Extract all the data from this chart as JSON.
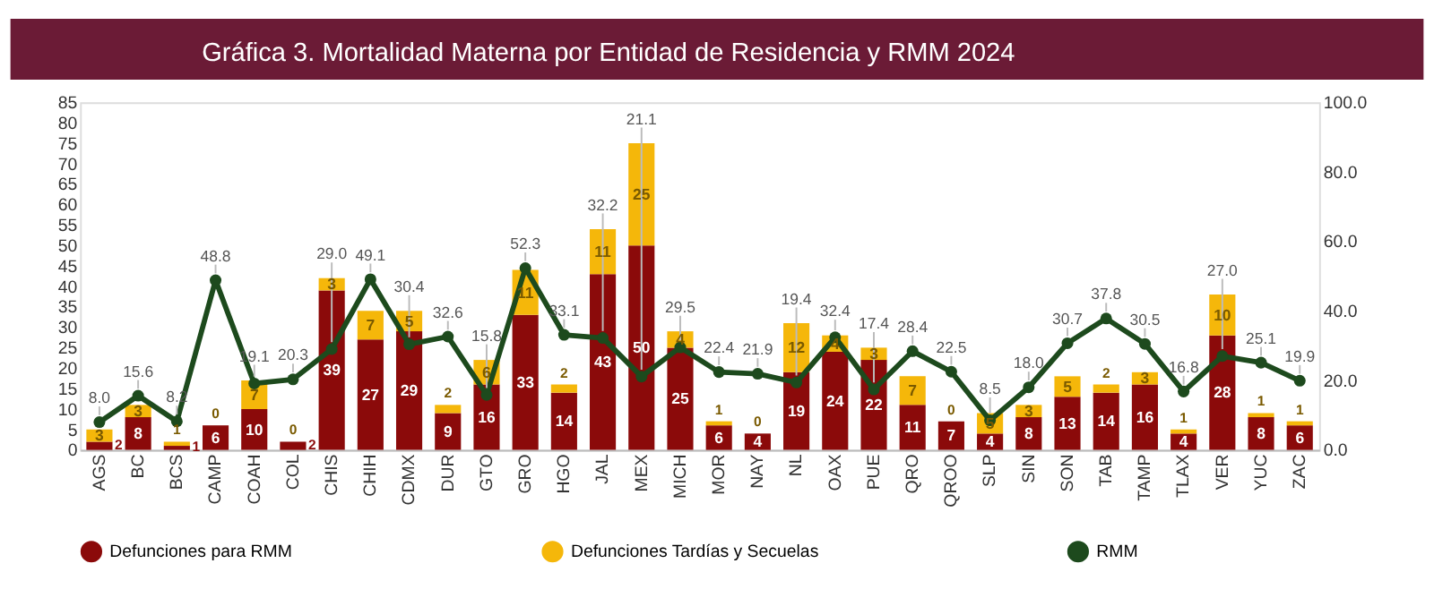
{
  "chart_data": {
    "type": "bar",
    "title": "Gráfica 3.  Mortalidad Materna por Entidad de Residencia  y RMM 2024",
    "categories": [
      "AGS",
      "BC",
      "BCS",
      "CAMP",
      "COAH",
      "COL",
      "CHIS",
      "CHIH",
      "CDMX",
      "DUR",
      "GTO",
      "GRO",
      "HGO",
      "JAL",
      "MEX",
      "MICH",
      "MOR",
      "NAY",
      "NL",
      "OAX",
      "PUE",
      "QRO",
      "QROO",
      "SLP",
      "SIN",
      "SON",
      "TAB",
      "TAMP",
      "TLAX",
      "VER",
      "YUC",
      "ZAC"
    ],
    "stacked": true,
    "series": [
      {
        "name": "Defunciones para RMM",
        "color": "#8b0a0a",
        "values": [
          2,
          8,
          1,
          6,
          10,
          2,
          39,
          27,
          29,
          9,
          16,
          33,
          14,
          43,
          50,
          25,
          6,
          4,
          19,
          24,
          22,
          11,
          7,
          4,
          8,
          13,
          14,
          16,
          4,
          28,
          8,
          6
        ]
      },
      {
        "name": "Defunciones Tardías y Secuelas",
        "color": "#f5b70a",
        "values": [
          3,
          3,
          1,
          0,
          7,
          0,
          3,
          7,
          5,
          2,
          6,
          11,
          2,
          11,
          25,
          4,
          1,
          0,
          12,
          4,
          3,
          7,
          0,
          5,
          3,
          5,
          2,
          3,
          1,
          10,
          1,
          1
        ]
      },
      {
        "name": "RMM",
        "type": "line",
        "axis": "y2",
        "color": "#1d4a1d",
        "marker": "circle",
        "values": [
          8.0,
          15.6,
          8.2,
          48.8,
          19.1,
          20.3,
          29.0,
          49.1,
          30.4,
          32.6,
          15.8,
          52.3,
          33.1,
          32.2,
          21.1,
          29.5,
          22.4,
          21.9,
          19.4,
          32.4,
          17.4,
          28.4,
          22.5,
          8.5,
          18.0,
          30.7,
          37.8,
          30.5,
          16.8,
          27.0,
          25.1,
          19.9
        ],
        "value_labels": [
          "8.0",
          "15.6",
          "8.2",
          "48.8",
          "19.1",
          "20.3",
          "29.0",
          "49.1",
          "30.4",
          "32.6",
          "15.8",
          "52.3",
          "33.1",
          "32.2",
          "21.1",
          "29.5",
          "22.4",
          "21.9",
          "19.4",
          "32.4",
          "17.4",
          "28.4",
          "22.5",
          "8.5",
          "18.0",
          "30.7",
          "37.8",
          "30.5",
          "16.8",
          "27.0",
          "25.1",
          "19.9"
        ]
      }
    ],
    "ylim": [
      0,
      85
    ],
    "yticks": [
      0,
      5,
      10,
      15,
      20,
      25,
      30,
      35,
      40,
      45,
      50,
      55,
      60,
      65,
      70,
      75,
      80,
      85
    ],
    "y2lim": [
      0,
      100
    ],
    "y2ticks": [
      {
        "value": 0,
        "label": "0.0"
      },
      {
        "value": 20,
        "label": "20.0"
      },
      {
        "value": 40,
        "label": "40.0"
      },
      {
        "value": 60,
        "label": "60.0"
      },
      {
        "value": 80,
        "label": "80.0"
      },
      {
        "value": 100,
        "label": "100.0"
      }
    ],
    "data_labels": true,
    "grid": false,
    "legend": "bottom"
  }
}
